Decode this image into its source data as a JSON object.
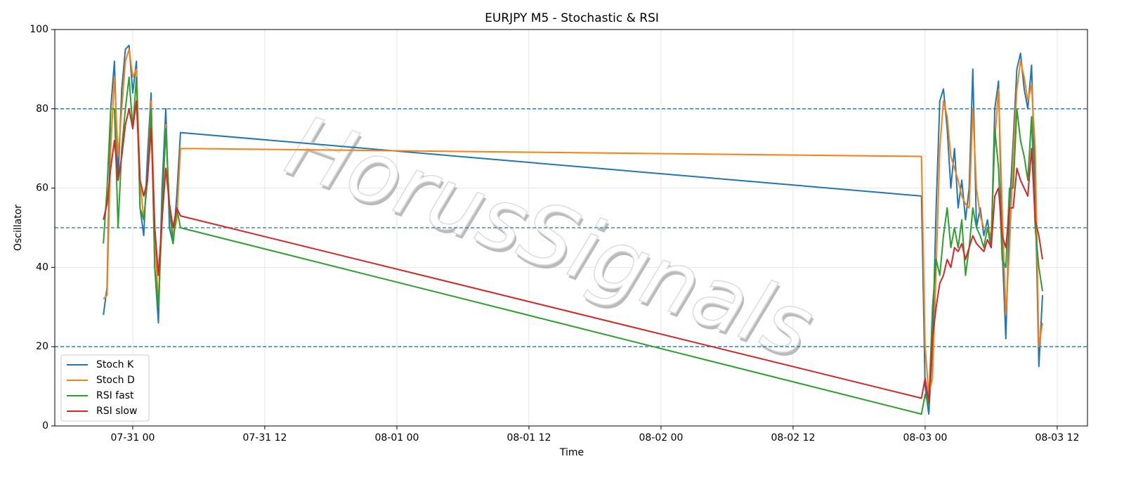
{
  "chart_data": {
    "type": "line",
    "title": "EURJPY M5 - Stochastic & RSI",
    "xlabel": "Time",
    "ylabel": "Oscillator",
    "watermark": "HorusSignals",
    "x": [
      "07-30 21:20",
      "07-30 21:40",
      "07-30 22:00",
      "07-30 22:20",
      "07-30 22:40",
      "07-30 23:00",
      "07-30 23:20",
      "07-30 23:40",
      "07-31 00:00",
      "07-31 00:20",
      "07-31 00:40",
      "07-31 01:00",
      "07-31 01:20",
      "07-31 01:40",
      "07-31 02:00",
      "07-31 02:20",
      "07-31 02:40",
      "07-31 03:00",
      "07-31 03:20",
      "07-31 03:40",
      "07-31 04:00",
      "07-31 04:20",
      "08-02 23:40",
      "08-03 00:00",
      "08-03 00:20",
      "08-03 00:40",
      "08-03 01:00",
      "08-03 01:20",
      "08-03 01:40",
      "08-03 02:00",
      "08-03 02:20",
      "08-03 02:40",
      "08-03 03:00",
      "08-03 03:20",
      "08-03 03:40",
      "08-03 04:00",
      "08-03 04:20",
      "08-03 04:40",
      "08-03 05:00",
      "08-03 05:20",
      "08-03 05:40",
      "08-03 06:00",
      "08-03 06:20",
      "08-03 06:40",
      "08-03 07:00",
      "08-03 07:20",
      "08-03 07:40",
      "08-03 08:00",
      "08-03 08:20",
      "08-03 08:40",
      "08-03 09:00",
      "08-03 09:20",
      "08-03 09:40",
      "08-03 10:00",
      "08-03 10:20",
      "08-03 10:40"
    ],
    "series": [
      {
        "name": "Stoch K",
        "color": "#1f77b4",
        "values": [
          28,
          35,
          80,
          92,
          62,
          85,
          95,
          96,
          84,
          92,
          55,
          48,
          68,
          84,
          40,
          26,
          60,
          80,
          50,
          46,
          58,
          74,
          58,
          10,
          3,
          20,
          55,
          82,
          85,
          75,
          60,
          70,
          55,
          62,
          52,
          60,
          90,
          50,
          55,
          48,
          52,
          45,
          80,
          87,
          45,
          22,
          55,
          72,
          90,
          94,
          85,
          80,
          91,
          60,
          15,
          33
        ]
      },
      {
        "name": "Stoch D",
        "color": "#ff7f0e",
        "values": [
          32,
          33,
          70,
          88,
          68,
          80,
          92,
          95,
          88,
          90,
          62,
          52,
          62,
          82,
          50,
          30,
          52,
          76,
          55,
          48,
          52,
          70,
          68,
          20,
          8,
          12,
          40,
          70,
          82,
          78,
          68,
          65,
          62,
          58,
          56,
          55,
          80,
          60,
          53,
          50,
          50,
          48,
          72,
          85,
          55,
          28,
          45,
          68,
          85,
          92,
          88,
          82,
          86,
          70,
          20,
          26
        ]
      },
      {
        "name": "RSI fast",
        "color": "#2ca02c",
        "values": [
          46,
          60,
          80,
          80,
          50,
          70,
          80,
          88,
          75,
          88,
          55,
          52,
          62,
          80,
          40,
          30,
          55,
          75,
          55,
          46,
          55,
          50,
          3,
          8,
          5,
          30,
          42,
          38,
          48,
          55,
          45,
          50,
          45,
          52,
          38,
          45,
          55,
          50,
          48,
          45,
          50,
          45,
          75,
          65,
          42,
          40,
          60,
          60,
          80,
          72,
          68,
          62,
          78,
          50,
          40,
          34
        ]
      },
      {
        "name": "RSI slow",
        "color": "#d62728",
        "values": [
          52,
          56,
          65,
          72,
          62,
          68,
          76,
          80,
          75,
          82,
          62,
          58,
          62,
          75,
          50,
          38,
          52,
          65,
          56,
          50,
          55,
          53,
          7,
          12,
          6,
          22,
          30,
          36,
          38,
          42,
          40,
          45,
          44,
          46,
          42,
          45,
          48,
          46,
          45,
          44,
          47,
          45,
          58,
          60,
          48,
          45,
          55,
          55,
          65,
          62,
          60,
          58,
          70,
          52,
          48,
          42
        ]
      }
    ],
    "hlines": [
      20,
      50,
      80
    ],
    "hline_color": "#1f77b4",
    "xlim": [
      "07-30 16:55",
      "08-03 14:45"
    ],
    "xticks": [
      {
        "value": "07-31 00:00",
        "label": "07-31 00"
      },
      {
        "value": "07-31 12:00",
        "label": "07-31 12"
      },
      {
        "value": "08-01 00:00",
        "label": "08-01 00"
      },
      {
        "value": "08-01 12:00",
        "label": "08-01 12"
      },
      {
        "value": "08-02 00:00",
        "label": "08-02 00"
      },
      {
        "value": "08-02 12:00",
        "label": "08-02 12"
      },
      {
        "value": "08-03 00:00",
        "label": "08-03 00"
      },
      {
        "value": "08-03 12:00",
        "label": "08-03 12"
      }
    ],
    "ylim": [
      0,
      100
    ],
    "yticks": [
      0,
      20,
      40,
      60,
      80,
      100
    ],
    "grid": true,
    "legend": "lower left"
  }
}
